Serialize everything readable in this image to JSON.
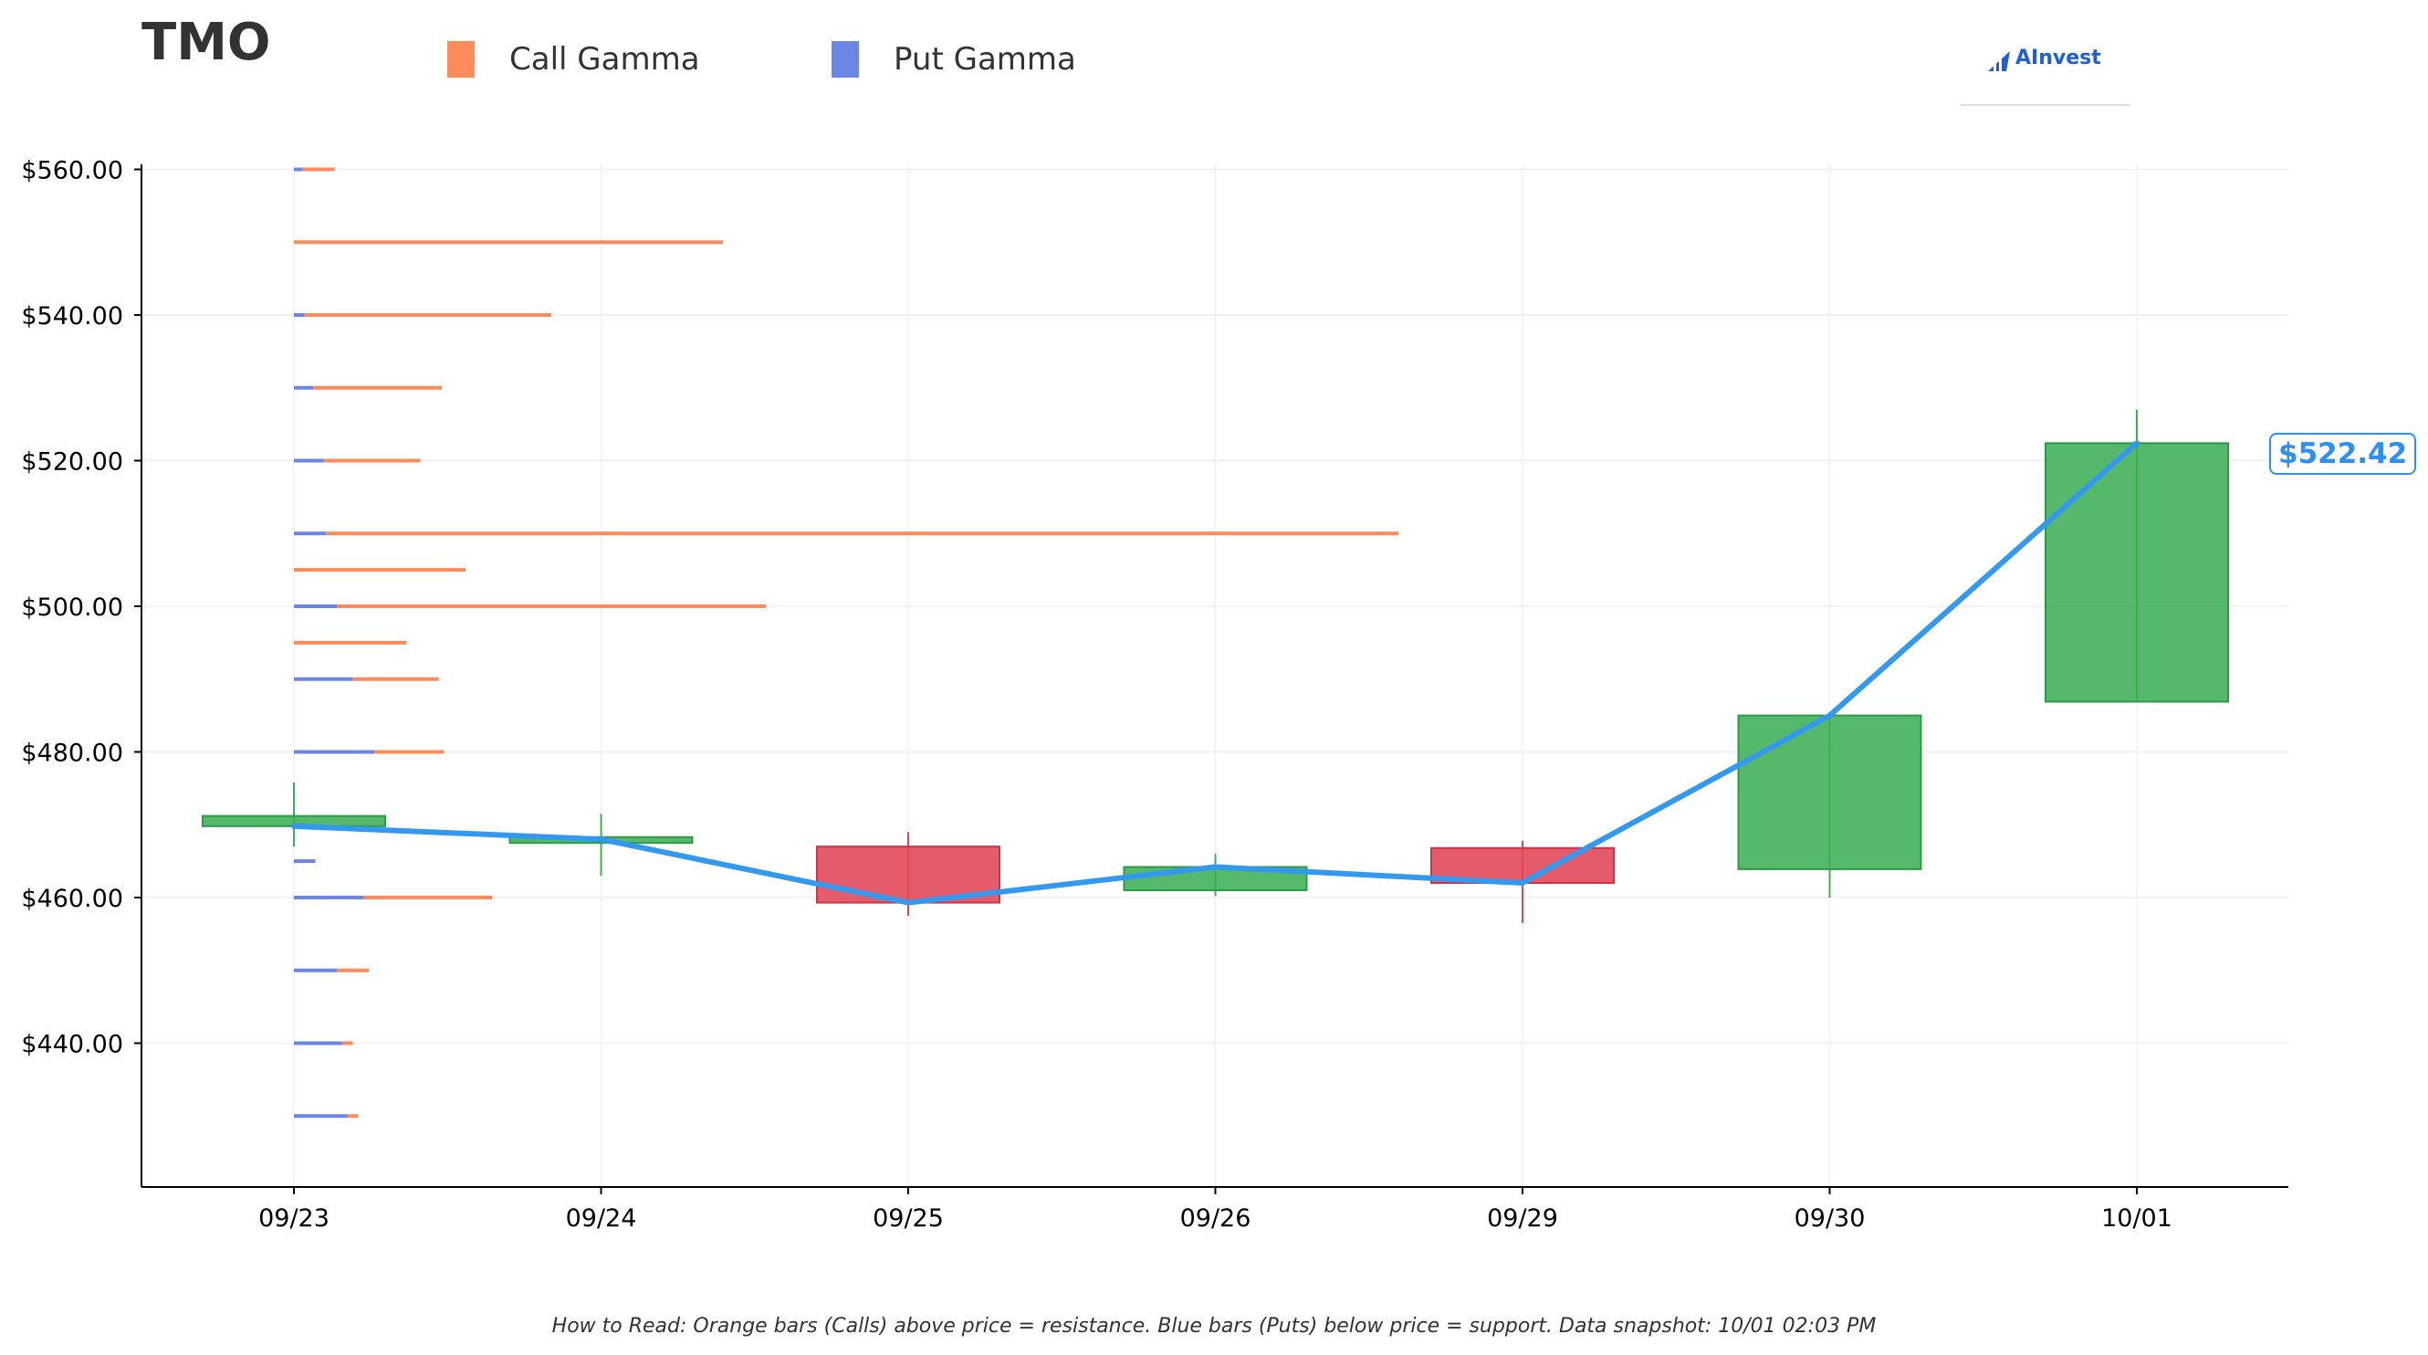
{
  "header": {
    "ticker": "TMO",
    "logo_text": "AInvest"
  },
  "legend": [
    {
      "label": "Call Gamma",
      "color": "#ff8a5c"
    },
    {
      "label": "Put Gamma",
      "color": "#6b86e6"
    }
  ],
  "footnote": "How to Read: Orange bars (Calls) above price = resistance. Blue bars (Puts) below price = support. Data snapshot: 10/01 02:03 PM",
  "chart_data": {
    "type": "candlestick",
    "categories": [
      "09/23",
      "09/24",
      "09/25",
      "09/26",
      "09/29",
      "09/30",
      "10/01"
    ],
    "y_tick_values": [
      440,
      460,
      480,
      500,
      520,
      540,
      560
    ],
    "y_tick_labels": [
      "$440.00",
      "$460.00",
      "$480.00",
      "$500.00",
      "$520.00",
      "$540.00",
      "$560.00"
    ],
    "ylim": [
      422,
      562
    ],
    "grid": true,
    "candles": [
      {
        "date": "09/23",
        "open": 469.8,
        "high": 475.8,
        "low": 467.0,
        "close": 471.2
      },
      {
        "date": "09/24",
        "open": 467.5,
        "high": 471.5,
        "low": 463.0,
        "close": 468.3
      },
      {
        "date": "09/25",
        "open": 467.0,
        "high": 469.0,
        "low": 457.5,
        "close": 459.3
      },
      {
        "date": "09/26",
        "open": 461.0,
        "high": 466.0,
        "low": 460.2,
        "close": 464.2
      },
      {
        "date": "09/29",
        "open": 466.8,
        "high": 467.8,
        "low": 456.5,
        "close": 462.0
      },
      {
        "date": "09/30",
        "open": 463.9,
        "high": 485.5,
        "low": 460.0,
        "close": 485.0
      },
      {
        "date": "10/01",
        "open": 486.9,
        "high": 527.0,
        "low": 486.9,
        "close": 522.4
      }
    ],
    "price_line": {
      "color": "#3399ee",
      "values": [
        469.8,
        468.0,
        459.3,
        464.2,
        462.0,
        485.0,
        522.42
      ]
    },
    "current_price_label": "$522.42",
    "gamma": {
      "series": [
        {
          "name": "Call Gamma",
          "color": "#ff8a5c"
        },
        {
          "name": "Put Gamma",
          "color": "#6b86e6"
        }
      ],
      "strikes": [
        430,
        440,
        450,
        460,
        465,
        470,
        480,
        490,
        495,
        500,
        505,
        510,
        520,
        530,
        540,
        550,
        560
      ],
      "put_gamma": [
        0.05,
        0.045,
        0.04,
        0.065,
        0.02,
        0.0,
        0.075,
        0.055,
        0.0,
        0.04,
        0.0,
        0.03,
        0.028,
        0.018,
        0.01,
        0.0,
        0.008
      ],
      "call_gamma": [
        0.01,
        0.01,
        0.03,
        0.12,
        0.0,
        0.01,
        0.065,
        0.08,
        0.105,
        0.4,
        0.16,
        1.0,
        0.09,
        0.12,
        0.23,
        0.4,
        0.03
      ]
    }
  }
}
